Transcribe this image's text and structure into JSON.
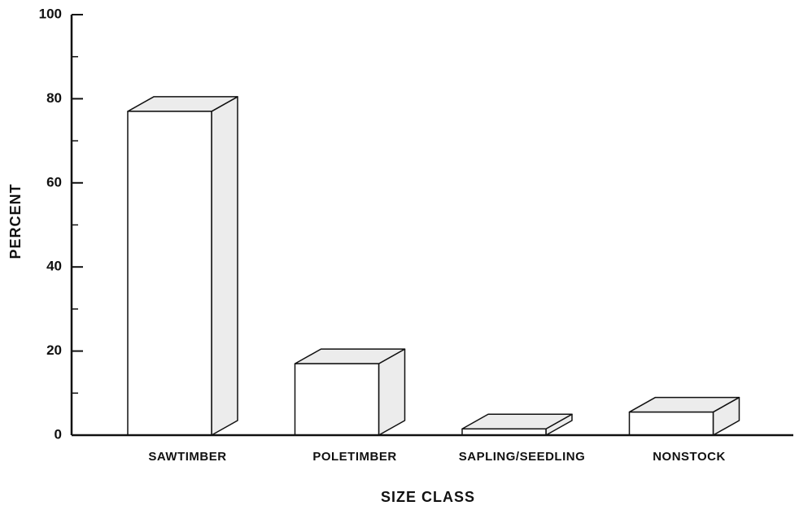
{
  "chart_data": {
    "type": "bar3d",
    "categories": [
      "SAWTIMBER",
      "POLETIMBER",
      "SAPLING/SEEDLING",
      "NONSTOCK"
    ],
    "values": [
      77,
      17,
      1.5,
      5.5
    ],
    "color": "#ffffff",
    "side_color": "#ececec",
    "xlabel": "SIZE CLASS",
    "ylabel": "PERCENT",
    "ylim": [
      0,
      100
    ],
    "yticks": [
      0,
      20,
      40,
      60,
      80,
      100
    ],
    "yminorticks": [
      10,
      30,
      50,
      70,
      90
    ]
  }
}
